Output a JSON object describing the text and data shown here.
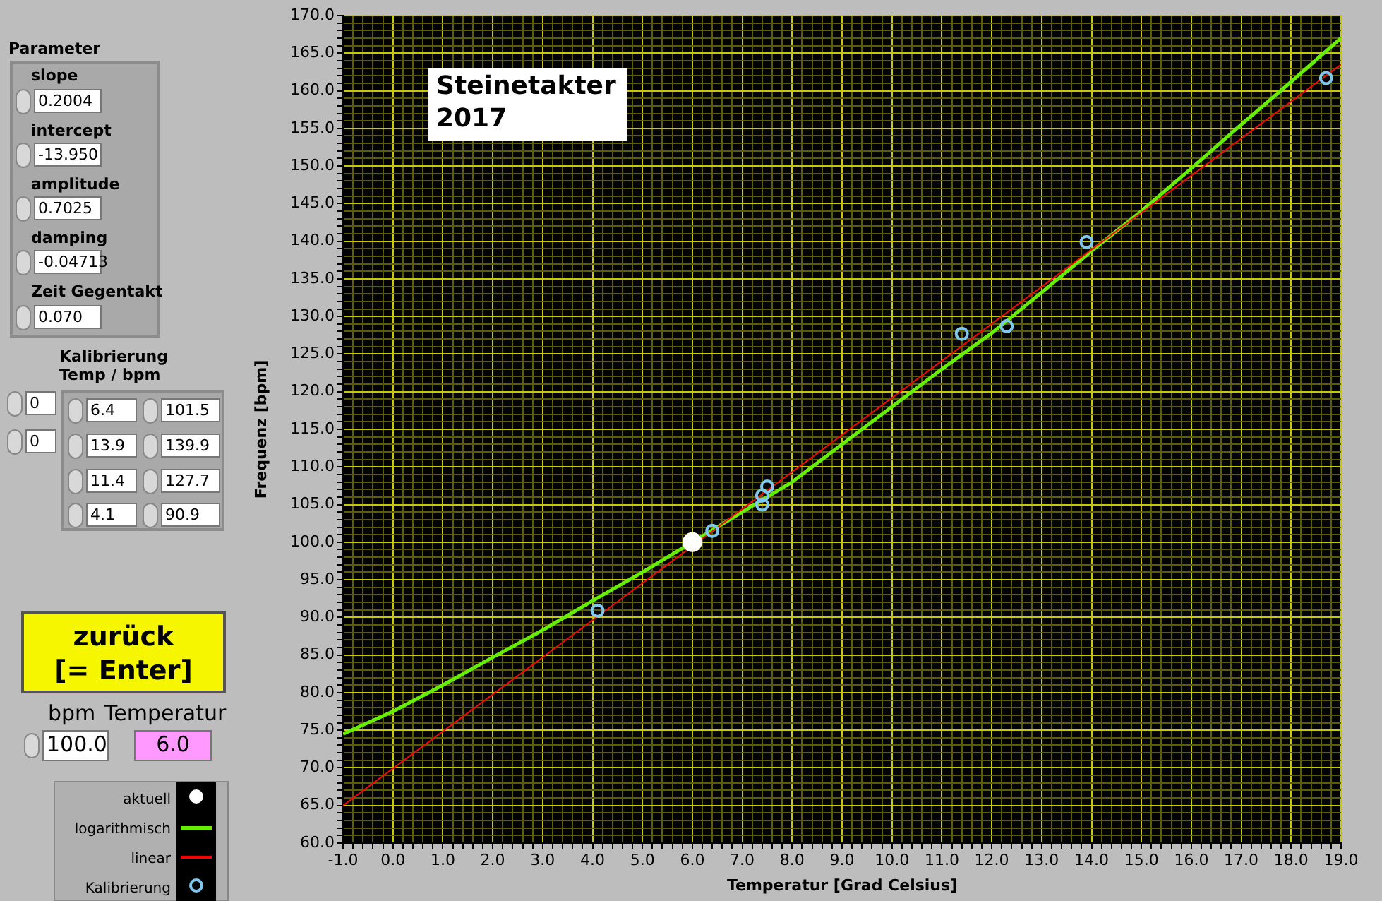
{
  "chart_data": {
    "type": "scatter",
    "title": "Steinetakter\n2017",
    "xlabel": "Temperatur [Grad Celsius]",
    "ylabel": "Frequenz [bpm]",
    "xlim": [
      -1,
      19
    ],
    "xticks": [
      {
        "value": -1,
        "label": "-1.0"
      },
      {
        "value": -0.8,
        "label": null
      },
      {
        "value": -0.6,
        "label": null
      },
      {
        "value": -0.4,
        "label": null
      },
      {
        "value": -0.2,
        "label": null
      },
      {
        "value": 0,
        "label": "0.0"
      },
      {
        "value": 0.2,
        "label": null
      },
      {
        "value": 0.4,
        "label": null
      },
      {
        "value": 0.6,
        "label": null
      },
      {
        "value": 0.8,
        "label": null
      },
      {
        "value": 1,
        "label": "1.0"
      },
      {
        "value": 1.2,
        "label": null
      },
      {
        "value": 1.4,
        "label": null
      },
      {
        "value": 1.6,
        "label": null
      },
      {
        "value": 1.8,
        "label": null
      },
      {
        "value": 2,
        "label": "2.0"
      },
      {
        "value": 2.2,
        "label": null
      },
      {
        "value": 2.4,
        "label": null
      },
      {
        "value": 2.6,
        "label": null
      },
      {
        "value": 2.8,
        "label": null
      },
      {
        "value": 3,
        "label": "3.0"
      },
      {
        "value": 3.2,
        "label": null
      },
      {
        "value": 3.4,
        "label": null
      },
      {
        "value": 3.6,
        "label": null
      },
      {
        "value": 3.8,
        "label": null
      },
      {
        "value": 4,
        "label": "4.0"
      },
      {
        "value": 4.2,
        "label": null
      },
      {
        "value": 4.4,
        "label": null
      },
      {
        "value": 4.6,
        "label": null
      },
      {
        "value": 4.8,
        "label": null
      },
      {
        "value": 5,
        "label": "5.0"
      },
      {
        "value": 5.2,
        "label": null
      },
      {
        "value": 5.4,
        "label": null
      },
      {
        "value": 5.6,
        "label": null
      },
      {
        "value": 5.8,
        "label": null
      },
      {
        "value": 6,
        "label": "6.0"
      },
      {
        "value": 6.2,
        "label": null
      },
      {
        "value": 6.4,
        "label": null
      },
      {
        "value": 6.6,
        "label": null
      },
      {
        "value": 6.8,
        "label": null
      },
      {
        "value": 7,
        "label": "7.0"
      },
      {
        "value": 7.2,
        "label": null
      },
      {
        "value": 7.4,
        "label": null
      },
      {
        "value": 7.6,
        "label": null
      },
      {
        "value": 7.8,
        "label": null
      },
      {
        "value": 8,
        "label": "8.0"
      },
      {
        "value": 8.2,
        "label": null
      },
      {
        "value": 8.4,
        "label": null
      },
      {
        "value": 8.6,
        "label": null
      },
      {
        "value": 8.8,
        "label": null
      },
      {
        "value": 9,
        "label": "9.0"
      },
      {
        "value": 9.2,
        "label": null
      },
      {
        "value": 9.4,
        "label": null
      },
      {
        "value": 9.6,
        "label": null
      },
      {
        "value": 9.8,
        "label": null
      },
      {
        "value": 10,
        "label": "10.0"
      },
      {
        "value": 10.2,
        "label": null
      },
      {
        "value": 10.4,
        "label": null
      },
      {
        "value": 10.6,
        "label": null
      },
      {
        "value": 10.8,
        "label": null
      },
      {
        "value": 11,
        "label": "11.0"
      },
      {
        "value": 11.2,
        "label": null
      },
      {
        "value": 11.4,
        "label": null
      },
      {
        "value": 11.6,
        "label": null
      },
      {
        "value": 11.8,
        "label": null
      },
      {
        "value": 12,
        "label": "12.0"
      },
      {
        "value": 12.2,
        "label": null
      },
      {
        "value": 12.4,
        "label": null
      },
      {
        "value": 12.6,
        "label": null
      },
      {
        "value": 12.8,
        "label": null
      },
      {
        "value": 13,
        "label": "13.0"
      },
      {
        "value": 13.2,
        "label": null
      },
      {
        "value": 13.4,
        "label": null
      },
      {
        "value": 13.6,
        "label": null
      },
      {
        "value": 13.8,
        "label": null
      },
      {
        "value": 14,
        "label": "14.0"
      },
      {
        "value": 14.2,
        "label": null
      },
      {
        "value": 14.4,
        "label": null
      },
      {
        "value": 14.6,
        "label": null
      },
      {
        "value": 14.8,
        "label": null
      },
      {
        "value": 15,
        "label": "15.0"
      },
      {
        "value": 15.2,
        "label": null
      },
      {
        "value": 15.4,
        "label": null
      },
      {
        "value": 15.6,
        "label": null
      },
      {
        "value": 15.8,
        "label": null
      },
      {
        "value": 16,
        "label": "16.0"
      },
      {
        "value": 16.2,
        "label": null
      },
      {
        "value": 16.4,
        "label": null
      },
      {
        "value": 16.6,
        "label": null
      },
      {
        "value": 16.8,
        "label": null
      },
      {
        "value": 17,
        "label": "17.0"
      },
      {
        "value": 17.2,
        "label": null
      },
      {
        "value": 17.4,
        "label": null
      },
      {
        "value": 17.6,
        "label": null
      },
      {
        "value": 17.8,
        "label": null
      },
      {
        "value": 18,
        "label": "18.0"
      },
      {
        "value": 18.2,
        "label": null
      },
      {
        "value": 18.4,
        "label": null
      },
      {
        "value": 18.6,
        "label": null
      },
      {
        "value": 18.8,
        "label": null
      },
      {
        "value": 19,
        "label": "19.0"
      }
    ],
    "ylim": [
      60,
      170
    ],
    "yticks": [
      {
        "value": 60,
        "label": "60.0"
      },
      {
        "value": 61,
        "label": null
      },
      {
        "value": 62,
        "label": null
      },
      {
        "value": 63,
        "label": null
      },
      {
        "value": 64,
        "label": null
      },
      {
        "value": 65,
        "label": "65.0"
      },
      {
        "value": 66,
        "label": null
      },
      {
        "value": 67,
        "label": null
      },
      {
        "value": 68,
        "label": null
      },
      {
        "value": 69,
        "label": null
      },
      {
        "value": 70,
        "label": "70.0"
      },
      {
        "value": 71,
        "label": null
      },
      {
        "value": 72,
        "label": null
      },
      {
        "value": 73,
        "label": null
      },
      {
        "value": 74,
        "label": null
      },
      {
        "value": 75,
        "label": "75.0"
      },
      {
        "value": 76,
        "label": null
      },
      {
        "value": 77,
        "label": null
      },
      {
        "value": 78,
        "label": null
      },
      {
        "value": 79,
        "label": null
      },
      {
        "value": 80,
        "label": "80.0"
      },
      {
        "value": 81,
        "label": null
      },
      {
        "value": 82,
        "label": null
      },
      {
        "value": 83,
        "label": null
      },
      {
        "value": 84,
        "label": null
      },
      {
        "value": 85,
        "label": "85.0"
      },
      {
        "value": 86,
        "label": null
      },
      {
        "value": 87,
        "label": null
      },
      {
        "value": 88,
        "label": null
      },
      {
        "value": 89,
        "label": null
      },
      {
        "value": 90,
        "label": "90.0"
      },
      {
        "value": 91,
        "label": null
      },
      {
        "value": 92,
        "label": null
      },
      {
        "value": 93,
        "label": null
      },
      {
        "value": 94,
        "label": null
      },
      {
        "value": 95,
        "label": "95.0"
      },
      {
        "value": 96,
        "label": null
      },
      {
        "value": 97,
        "label": null
      },
      {
        "value": 98,
        "label": null
      },
      {
        "value": 99,
        "label": null
      },
      {
        "value": 100,
        "label": "100.0"
      },
      {
        "value": 101,
        "label": null
      },
      {
        "value": 102,
        "label": null
      },
      {
        "value": 103,
        "label": null
      },
      {
        "value": 104,
        "label": null
      },
      {
        "value": 105,
        "label": "105.0"
      },
      {
        "value": 106,
        "label": null
      },
      {
        "value": 107,
        "label": null
      },
      {
        "value": 108,
        "label": null
      },
      {
        "value": 109,
        "label": null
      },
      {
        "value": 110,
        "label": "110.0"
      },
      {
        "value": 111,
        "label": null
      },
      {
        "value": 112,
        "label": null
      },
      {
        "value": 113,
        "label": null
      },
      {
        "value": 114,
        "label": null
      },
      {
        "value": 115,
        "label": "115.0"
      },
      {
        "value": 116,
        "label": null
      },
      {
        "value": 117,
        "label": null
      },
      {
        "value": 118,
        "label": null
      },
      {
        "value": 119,
        "label": null
      },
      {
        "value": 120,
        "label": "120.0"
      },
      {
        "value": 121,
        "label": null
      },
      {
        "value": 122,
        "label": null
      },
      {
        "value": 123,
        "label": null
      },
      {
        "value": 124,
        "label": null
      },
      {
        "value": 125,
        "label": "125.0"
      },
      {
        "value": 126,
        "label": null
      },
      {
        "value": 127,
        "label": null
      },
      {
        "value": 128,
        "label": null
      },
      {
        "value": 129,
        "label": null
      },
      {
        "value": 130,
        "label": "130.0"
      },
      {
        "value": 131,
        "label": null
      },
      {
        "value": 132,
        "label": null
      },
      {
        "value": 133,
        "label": null
      },
      {
        "value": 134,
        "label": null
      },
      {
        "value": 135,
        "label": "135.0"
      },
      {
        "value": 136,
        "label": null
      },
      {
        "value": 137,
        "label": null
      },
      {
        "value": 138,
        "label": null
      },
      {
        "value": 139,
        "label": null
      },
      {
        "value": 140,
        "label": "140.0"
      },
      {
        "value": 141,
        "label": null
      },
      {
        "value": 142,
        "label": null
      },
      {
        "value": 143,
        "label": null
      },
      {
        "value": 144,
        "label": null
      },
      {
        "value": 145,
        "label": "145.0"
      },
      {
        "value": 146,
        "label": null
      },
      {
        "value": 147,
        "label": null
      },
      {
        "value": 148,
        "label": null
      },
      {
        "value": 149,
        "label": null
      },
      {
        "value": 150,
        "label": "150.0"
      },
      {
        "value": 151,
        "label": null
      },
      {
        "value": 152,
        "label": null
      },
      {
        "value": 153,
        "label": null
      },
      {
        "value": 154,
        "label": null
      },
      {
        "value": 155,
        "label": "155.0"
      },
      {
        "value": 156,
        "label": null
      },
      {
        "value": 157,
        "label": null
      },
      {
        "value": 158,
        "label": null
      },
      {
        "value": 159,
        "label": null
      },
      {
        "value": 160,
        "label": "160.0"
      },
      {
        "value": 161,
        "label": null
      },
      {
        "value": 162,
        "label": null
      },
      {
        "value": 163,
        "label": null
      },
      {
        "value": 164,
        "label": null
      },
      {
        "value": 165,
        "label": "165.0"
      },
      {
        "value": 166,
        "label": null
      },
      {
        "value": 167,
        "label": null
      },
      {
        "value": 168,
        "label": null
      },
      {
        "value": 169,
        "label": null
      },
      {
        "value": 170,
        "label": "170.0"
      }
    ],
    "grid": true,
    "legend": "bottom left",
    "series": [
      {
        "name": "aktuell",
        "marker": "circle",
        "color": "#ffffff",
        "x": [
          6
        ],
        "values": [
          100
        ]
      },
      {
        "name": "logarithmisch",
        "type": "line",
        "marker": "none",
        "color": "#66ee00",
        "x": [
          -1,
          0,
          1,
          2,
          3,
          4,
          5,
          6,
          7,
          8,
          9,
          10,
          11,
          12,
          13,
          14,
          15,
          16,
          17,
          18,
          19
        ],
        "values": [
          74.5,
          77.5,
          81,
          84.7,
          88.3,
          92.2,
          96,
          100,
          104,
          108,
          113,
          118,
          123,
          127.8,
          133.2,
          138.7,
          144,
          149.7,
          155.5,
          161.2,
          167
        ]
      },
      {
        "name": "linear",
        "type": "line",
        "marker": "none",
        "color": "#ff0000",
        "x": [
          -1,
          19
        ],
        "values": [
          65,
          163.5
        ]
      },
      {
        "name": "Kalibrierung",
        "marker": "circle",
        "color": "#7ec8f0",
        "x": [
          4.1,
          6.4,
          7.4,
          7.4,
          7.5,
          11.4,
          12.3,
          13.9,
          18.7
        ],
        "values": [
          90.9,
          101.5,
          105,
          106.2,
          107.4,
          127.7,
          128.7,
          139.9,
          161.7
        ]
      }
    ],
    "annotations": [
      "Parameter",
      "slope",
      "0.2004",
      "intercept",
      "-13.950",
      "amplitude",
      "0.7025",
      "damping",
      "-0.04713",
      "Zeit Gegentakt",
      "0.070",
      "Kalibrierung\nTemp / bpm",
      "0",
      "0",
      "6.4",
      "101.5",
      "13.9",
      "139.9",
      "11.4",
      "127.7",
      "4.1",
      "90.9",
      "zurück\n[= Enter]",
      "bpm",
      "Temperatur",
      "100.0",
      "6.0"
    ]
  }
}
